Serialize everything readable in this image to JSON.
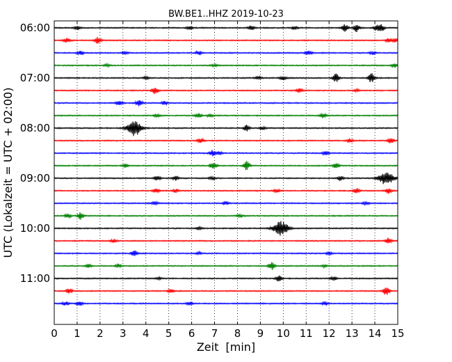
{
  "chart_data": {
    "type": "line",
    "title": "BW.BE1..HHZ 2019-10-23",
    "xlabel": "Zeit  [min]",
    "ylabel": "UTC (Lokalzeit = UTC + 02:00)",
    "xlim": [
      0,
      15
    ],
    "x_ticks": [
      "0",
      "1",
      "2",
      "3",
      "4",
      "5",
      "6",
      "7",
      "8",
      "9",
      "10",
      "11",
      "12",
      "13",
      "14",
      "15"
    ],
    "y_tick_labels": [
      "06:00",
      "07:00",
      "08:00",
      "09:00",
      "10:00",
      "11:00"
    ],
    "grid": {
      "vertical_dotted": true
    },
    "trace_interval_minutes": 15,
    "trace_colors": [
      "#000000",
      "#ff0000",
      "#0000ff",
      "#008000"
    ],
    "traces": [
      {
        "start": "06:00",
        "events": [
          [
            1.0,
            0.25
          ],
          [
            5.9,
            0.2
          ],
          [
            8.6,
            0.25
          ],
          [
            10.5,
            0.25
          ],
          [
            12.7,
            0.45
          ],
          [
            13.2,
            0.5
          ],
          [
            14.1,
            0.45
          ],
          [
            14.3,
            0.4
          ]
        ]
      },
      {
        "start": "06:15",
        "events": [
          [
            0.55,
            0.3
          ],
          [
            1.9,
            0.4
          ],
          [
            14.6,
            0.25
          ],
          [
            14.9,
            0.25
          ]
        ]
      },
      {
        "start": "06:30",
        "events": [
          [
            1.15,
            0.25
          ],
          [
            3.1,
            0.2
          ],
          [
            6.3,
            0.25
          ],
          [
            11.1,
            0.35
          ],
          [
            13.9,
            0.2
          ]
        ]
      },
      {
        "start": "06:45",
        "events": [
          [
            2.3,
            0.15
          ],
          [
            7.0,
            0.15
          ],
          [
            14.85,
            0.25
          ]
        ]
      },
      {
        "start": "07:00",
        "events": [
          [
            4.0,
            0.15
          ],
          [
            8.9,
            0.2
          ],
          [
            10.0,
            0.25
          ],
          [
            12.3,
            0.55
          ],
          [
            13.85,
            0.6
          ]
        ]
      },
      {
        "start": "07:15",
        "events": [
          [
            4.4,
            0.4
          ],
          [
            10.7,
            0.25
          ],
          [
            13.2,
            0.15
          ]
        ]
      },
      {
        "start": "07:30",
        "events": [
          [
            2.85,
            0.3
          ],
          [
            3.7,
            0.45
          ],
          [
            4.8,
            0.2
          ]
        ]
      },
      {
        "start": "07:45",
        "events": [
          [
            4.5,
            0.2
          ],
          [
            6.3,
            0.35
          ],
          [
            6.8,
            0.2
          ],
          [
            11.75,
            0.3
          ]
        ]
      },
      {
        "start": "08:00",
        "events": [
          [
            3.5,
            1.0
          ],
          [
            8.4,
            0.4
          ],
          [
            9.1,
            0.2
          ]
        ]
      },
      {
        "start": "08:15",
        "events": [
          [
            6.4,
            0.3
          ],
          [
            12.9,
            0.25
          ],
          [
            14.7,
            0.35
          ]
        ]
      },
      {
        "start": "08:30",
        "events": [
          [
            6.9,
            0.35
          ],
          [
            7.2,
            0.2
          ],
          [
            11.85,
            0.25
          ]
        ]
      },
      {
        "start": "08:45",
        "events": [
          [
            3.1,
            0.2
          ],
          [
            6.95,
            0.55
          ],
          [
            8.4,
            0.55
          ],
          [
            12.3,
            0.3
          ]
        ]
      },
      {
        "start": "09:00",
        "events": [
          [
            4.5,
            0.3
          ],
          [
            5.3,
            0.25
          ],
          [
            6.9,
            0.2
          ],
          [
            12.5,
            0.3
          ],
          [
            14.5,
            0.9
          ]
        ]
      },
      {
        "start": "09:15",
        "events": [
          [
            4.45,
            0.25
          ],
          [
            5.3,
            0.2
          ],
          [
            9.7,
            0.25
          ],
          [
            13.2,
            0.35
          ],
          [
            14.6,
            0.35
          ]
        ]
      },
      {
        "start": "09:30",
        "events": [
          [
            4.4,
            0.2
          ],
          [
            7.5,
            0.2
          ],
          [
            13.6,
            0.2
          ]
        ]
      },
      {
        "start": "09:45",
        "events": [
          [
            0.6,
            0.3
          ],
          [
            1.15,
            0.45
          ],
          [
            8.1,
            0.2
          ]
        ]
      },
      {
        "start": "10:00",
        "events": [
          [
            6.3,
            0.15
          ],
          [
            9.9,
            0.95
          ]
        ]
      },
      {
        "start": "10:15",
        "events": [
          [
            2.6,
            0.2
          ],
          [
            14.6,
            0.4
          ]
        ]
      },
      {
        "start": "10:30",
        "events": [
          [
            3.5,
            0.35
          ],
          [
            6.3,
            0.15
          ],
          [
            12.0,
            0.15
          ]
        ]
      },
      {
        "start": "10:45",
        "events": [
          [
            1.5,
            0.2
          ],
          [
            2.8,
            0.25
          ],
          [
            9.5,
            0.55
          ],
          [
            11.8,
            0.15
          ]
        ]
      },
      {
        "start": "11:00",
        "events": [
          [
            4.55,
            0.15
          ],
          [
            9.8,
            0.35
          ],
          [
            12.2,
            0.2
          ]
        ]
      },
      {
        "start": "11:15",
        "events": [
          [
            0.65,
            0.35
          ],
          [
            5.1,
            0.3
          ],
          [
            14.5,
            0.6
          ]
        ]
      },
      {
        "start": "11:30",
        "events": [
          [
            0.5,
            0.25
          ],
          [
            1.1,
            0.3
          ],
          [
            5.9,
            0.2
          ],
          [
            11.8,
            0.2
          ]
        ]
      }
    ]
  }
}
